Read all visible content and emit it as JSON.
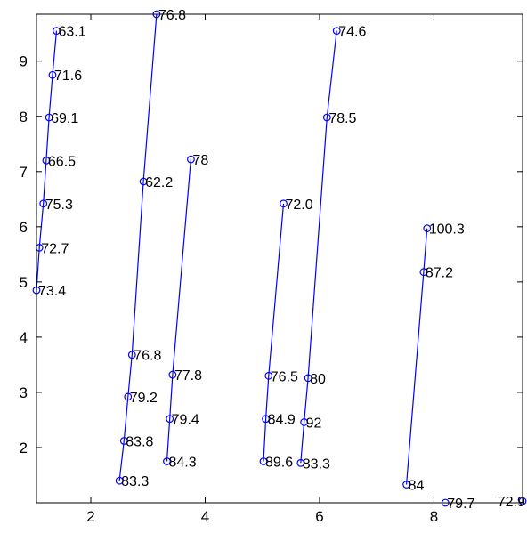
{
  "chart_data": {
    "type": "line",
    "title": "",
    "xlabel": "",
    "ylabel": "",
    "xlim": [
      1.05,
      9.55
    ],
    "ylim": [
      1.0,
      9.85
    ],
    "xticks": [
      2,
      4,
      6,
      8
    ],
    "yticks": [
      2,
      3,
      4,
      5,
      6,
      7,
      8,
      9
    ],
    "grid": false,
    "colors": {
      "series": "#0000ff",
      "axes": "#000000"
    },
    "series": [
      {
        "points": [
          {
            "x": 1.05,
            "y": 4.85,
            "label": "73.4"
          },
          {
            "x": 1.1,
            "y": 5.62,
            "label": "72.7"
          },
          {
            "x": 1.17,
            "y": 6.42,
            "label": "75.3"
          },
          {
            "x": 1.22,
            "y": 7.2,
            "label": "66.5"
          },
          {
            "x": 1.27,
            "y": 7.98,
            "label": "69.1"
          },
          {
            "x": 1.33,
            "y": 8.75,
            "label": "71.6"
          },
          {
            "x": 1.4,
            "y": 9.55,
            "label": "63.1"
          }
        ]
      },
      {
        "points": [
          {
            "x": 2.5,
            "y": 1.4,
            "label": "83.3"
          },
          {
            "x": 2.58,
            "y": 2.12,
            "label": "83.8"
          },
          {
            "x": 2.65,
            "y": 2.92,
            "label": "79.2"
          },
          {
            "x": 2.72,
            "y": 3.68,
            "label": "76.8"
          },
          {
            "x": 2.92,
            "y": 6.82,
            "label": "62.2"
          },
          {
            "x": 3.15,
            "y": 9.85,
            "label": "76.8"
          }
        ]
      },
      {
        "points": [
          {
            "x": 3.33,
            "y": 1.75,
            "label": "84.3"
          },
          {
            "x": 3.38,
            "y": 2.52,
            "label": "79.4"
          },
          {
            "x": 3.43,
            "y": 3.32,
            "label": "77.8"
          },
          {
            "x": 3.75,
            "y": 7.22,
            "label": "78"
          }
        ]
      },
      {
        "points": [
          {
            "x": 5.02,
            "y": 1.75,
            "label": "89.6"
          },
          {
            "x": 5.06,
            "y": 2.52,
            "label": "84.9"
          },
          {
            "x": 5.11,
            "y": 3.3,
            "label": "76.5"
          },
          {
            "x": 5.37,
            "y": 6.42,
            "label": "72.0"
          }
        ]
      },
      {
        "points": [
          {
            "x": 5.67,
            "y": 1.72,
            "label": "83.3"
          },
          {
            "x": 5.73,
            "y": 2.46,
            "label": "92"
          },
          {
            "x": 5.8,
            "y": 3.26,
            "label": "80"
          },
          {
            "x": 6.13,
            "y": 7.98,
            "label": "78.5"
          },
          {
            "x": 6.3,
            "y": 9.55,
            "label": "74.6"
          }
        ]
      },
      {
        "points": [
          {
            "x": 7.52,
            "y": 1.33,
            "label": "84"
          },
          {
            "x": 7.82,
            "y": 5.18,
            "label": "87.2"
          },
          {
            "x": 7.88,
            "y": 5.97,
            "label": "100.3"
          }
        ]
      },
      {
        "points": [
          {
            "x": 8.2,
            "y": 1.0,
            "label": "79.7"
          }
        ]
      },
      {
        "points": [
          {
            "x": 9.55,
            "y": 1.03,
            "label": "72.9"
          }
        ]
      }
    ]
  }
}
